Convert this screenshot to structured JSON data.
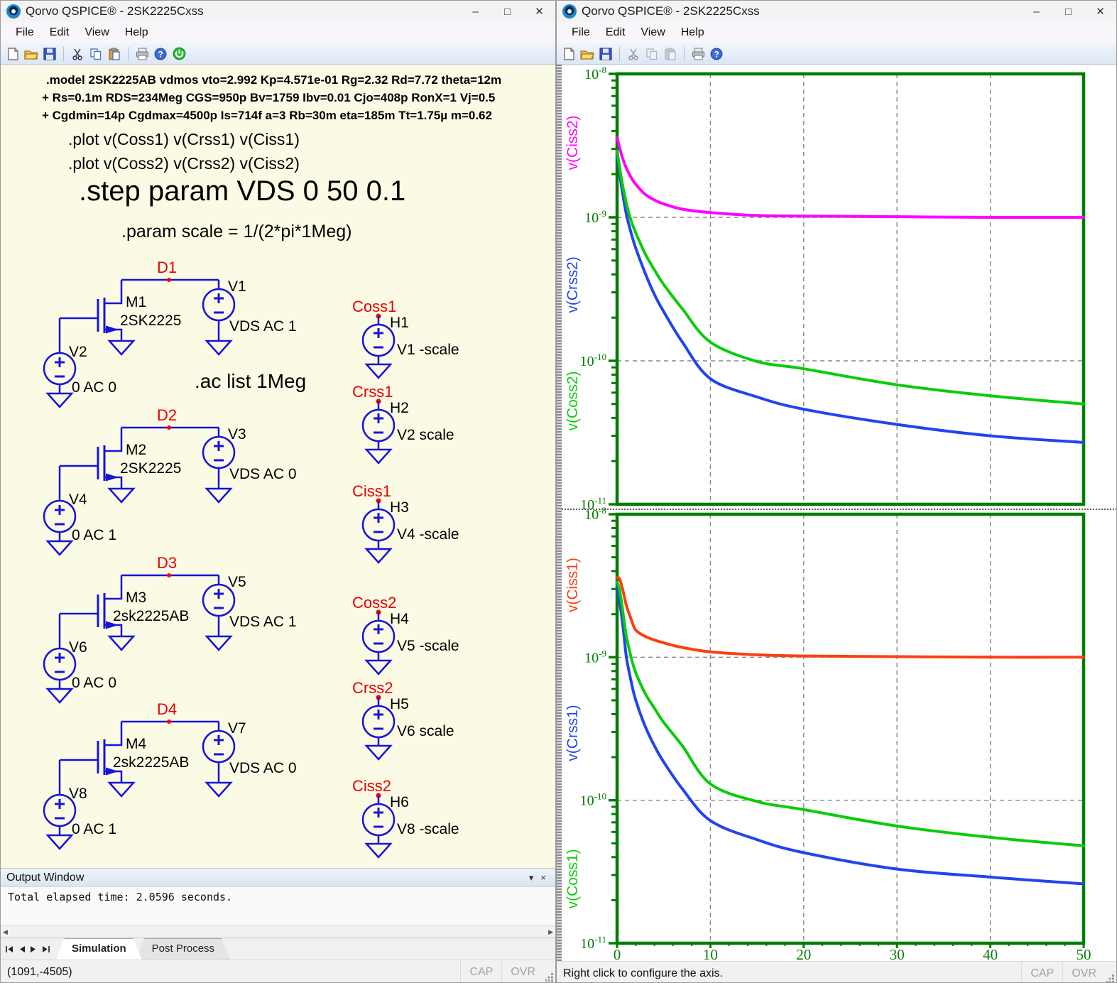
{
  "left_window": {
    "title": "Qorvo QSPICE® - 2SK2225Cxss",
    "menus": [
      "File",
      "Edit",
      "View",
      "Help"
    ],
    "toolbar_icons": [
      "new-file",
      "open-file",
      "save-file",
      "cut",
      "copy",
      "paste",
      "print",
      "help",
      "run-simulation"
    ],
    "schematic": {
      "model_lines": [
        ".model 2SK2225AB vdmos vto=2.992 Kp=4.571e-01  Rg=2.32 Rd=7.72 theta=12m",
        "+ Rs=0.1m RDS=234Meg CGS=950p Bv=1759 Ibv=0.01 Cjo=408p RonX=1 Vj=0.5",
        "+ Cgdmin=14p Cgdmax=4500p Is=714f a=3 Rb=30m eta=185m Tt=1.75µ m=0.62"
      ],
      "plot_line1": ".plot v(Coss1) v(Crss1) v(Ciss1)",
      "plot_line2": ".plot v(Coss2) v(Crss2) v(Ciss2)",
      "step_line": ".step param VDS 0 50  0.1",
      "param_line": ".param  scale = 1/(2*pi*1Meg)",
      "ac_line": ".ac list 1Meg",
      "mosfet_groups": [
        {
          "node": "D1",
          "mosfet": "M1",
          "model": "2SK2225",
          "vdrain": "V1",
          "vdrain_value": "VDS AC 1",
          "vgate": "V2",
          "vgate_value": "0 AC 0"
        },
        {
          "node": "D2",
          "mosfet": "M2",
          "model": "2SK2225",
          "vdrain": "V3",
          "vdrain_value": "VDS AC 0",
          "vgate": "V4",
          "vgate_value": "0 AC 1"
        },
        {
          "node": "D3",
          "mosfet": "M3",
          "model": "2sk2225AB",
          "vdrain": "V5",
          "vdrain_value": "VDS AC 1",
          "vgate": "V6",
          "vgate_value": "0 AC 0"
        },
        {
          "node": "D4",
          "mosfet": "M4",
          "model": "2sk2225AB",
          "vdrain": "V7",
          "vdrain_value": "VDS AC 0",
          "vgate": "V8",
          "vgate_value": "0 AC 1"
        }
      ],
      "h_sources": [
        {
          "node": "Coss1",
          "name": "H1",
          "value": "V1 -scale"
        },
        {
          "node": "Crss1",
          "name": "H2",
          "value": "V2 scale"
        },
        {
          "node": "Ciss1",
          "name": "H3",
          "value": "V4 -scale"
        },
        {
          "node": "Coss2",
          "name": "H4",
          "value": "V5 -scale"
        },
        {
          "node": "Crss2",
          "name": "H5",
          "value": "V6 scale"
        },
        {
          "node": "Ciss2",
          "name": "H6",
          "value": "V8 -scale"
        }
      ],
      "colors": {
        "wire": "#1414dd",
        "node_label": "#e60000",
        "text": "#000000",
        "node_dot": "#ff0000"
      }
    },
    "output_window": {
      "title": "Output Window",
      "text": "Total elapsed time: 2.0596 seconds."
    },
    "tabs": [
      {
        "label": "Simulation",
        "active": true
      },
      {
        "label": "Post Process",
        "active": false
      }
    ],
    "status": {
      "coords": "(1091,-4505)",
      "cap": "CAP",
      "ovr": "OVR"
    }
  },
  "right_window": {
    "title": "Qorvo QSPICE® - 2SK2225Cxss",
    "menus": [
      "File",
      "Edit",
      "View",
      "Help"
    ],
    "toolbar_icons": [
      "new-file",
      "open-file",
      "save-file",
      "cut",
      "copy",
      "paste",
      "print",
      "help"
    ],
    "status": {
      "hint": "Right click to configure the  axis.",
      "cap": "CAP",
      "ovr": "OVR"
    }
  },
  "chart_data": [
    {
      "type": "line",
      "position": "top",
      "x_range": [
        0,
        50
      ],
      "y_scale": "log",
      "y_range": [
        1e-11,
        1e-08
      ],
      "y_tick_exponents": [
        -8,
        -9,
        -10,
        -11
      ],
      "x_ticks": [
        0,
        10,
        20,
        30,
        40,
        50
      ],
      "show_x_labels": false,
      "grid": {
        "vertical_at": [
          10,
          20,
          30,
          40
        ],
        "horizontal_at": [
          1e-09,
          1e-10
        ],
        "style": "dashed-gray"
      },
      "axis_color": "#007c00",
      "series": [
        {
          "name": "v(Ciss2)",
          "color": "#ff00ff",
          "x": [
            0,
            0.5,
            1,
            1.5,
            2,
            3,
            4,
            5,
            7,
            10,
            15,
            20,
            30,
            40,
            50
          ],
          "y": [
            3.6e-09,
            2.7e-09,
            2.2e-09,
            1.9e-09,
            1.7e-09,
            1.45e-09,
            1.32e-09,
            1.24e-09,
            1.14e-09,
            1.08e-09,
            1.03e-09,
            1.02e-09,
            1.01e-09,
            1e-09,
            1e-09
          ]
        },
        {
          "name": "v(Crss2)",
          "color": "#2244ee",
          "x": [
            0,
            0.5,
            1,
            1.5,
            2,
            3,
            4,
            5,
            7,
            10,
            15,
            20,
            30,
            40,
            50
          ],
          "y": [
            2.75e-09,
            1.6e-09,
            1.05e-09,
            7.8e-10,
            6.1e-10,
            4.1e-10,
            2.9e-10,
            2.2e-10,
            1.35e-10,
            7.5e-11,
            5.6e-11,
            4.6e-11,
            3.6e-11,
            3e-11,
            2.7e-11
          ]
        },
        {
          "name": "v(Coss2)",
          "color": "#0acc0a",
          "x": [
            0,
            0.5,
            1,
            1.5,
            2,
            3,
            4,
            5,
            7,
            10,
            15,
            20,
            30,
            40,
            50
          ],
          "y": [
            2.9e-09,
            1.8e-09,
            1.25e-09,
            9.5e-10,
            7.8e-10,
            5.6e-10,
            4.3e-10,
            3.4e-10,
            2.3e-10,
            1.35e-10,
            9.9e-11,
            8.8e-11,
            6.8e-11,
            5.7e-11,
            5e-11
          ]
        }
      ]
    },
    {
      "type": "line",
      "position": "bottom",
      "x_range": [
        0,
        50
      ],
      "y_scale": "log",
      "y_range": [
        1e-11,
        1e-08
      ],
      "y_tick_exponents": [
        -8,
        -9,
        -10,
        -11
      ],
      "x_ticks": [
        0,
        10,
        20,
        30,
        40,
        50
      ],
      "show_x_labels": true,
      "grid": {
        "vertical_at": [
          10,
          20,
          30,
          40
        ],
        "horizontal_at": [
          1e-09,
          1e-10
        ],
        "style": "dashed-gray"
      },
      "axis_color": "#007c00",
      "series": [
        {
          "name": "v(Ciss1)",
          "color": "#fb3f0f",
          "x": [
            0,
            0.3,
            0.7,
            1,
            1.5,
            2,
            3,
            4,
            5,
            7,
            10,
            15,
            20,
            30,
            40,
            50
          ],
          "y": [
            3.6e-09,
            3.5e-09,
            2.8e-09,
            2.3e-09,
            1.85e-09,
            1.55e-09,
            1.4e-09,
            1.32e-09,
            1.26e-09,
            1.17e-09,
            1.09e-09,
            1.04e-09,
            1.02e-09,
            1.01e-09,
            1e-09,
            1e-09
          ]
        },
        {
          "name": "v(Crss1)",
          "color": "#2244ee",
          "x": [
            0,
            0.3,
            0.7,
            1,
            1.5,
            2,
            3,
            4,
            5,
            7,
            10,
            15,
            20,
            30,
            40,
            50
          ],
          "y": [
            3.1e-09,
            2.4e-09,
            1.5e-09,
            1e-09,
            6.8e-10,
            5e-10,
            3.3e-10,
            2.4e-10,
            1.85e-10,
            1.2e-10,
            7.2e-11,
            5.3e-11,
            4.3e-11,
            3.3e-11,
            2.9e-11,
            2.6e-11
          ]
        },
        {
          "name": "v(Coss1)",
          "color": "#0acc0a",
          "x": [
            0,
            0.3,
            0.7,
            1,
            1.5,
            2,
            3,
            4,
            5,
            7,
            10,
            15,
            20,
            30,
            40,
            50
          ],
          "y": [
            3.35e-09,
            2.9e-09,
            1.9e-09,
            1.4e-09,
            1e-09,
            7.8e-10,
            5.6e-10,
            4.4e-10,
            3.5e-10,
            2.4e-10,
            1.3e-10,
            9.8e-11,
            8.6e-11,
            6.6e-11,
            5.5e-11,
            4.8e-11
          ]
        }
      ]
    }
  ]
}
